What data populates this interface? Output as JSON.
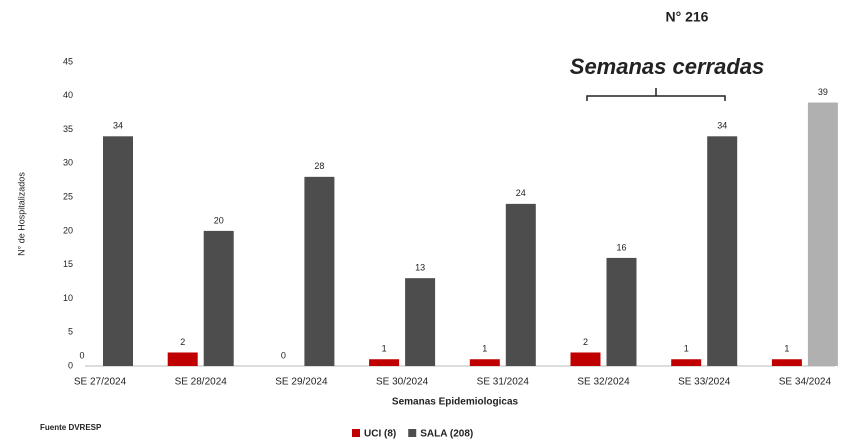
{
  "chart_data": {
    "type": "bar",
    "title": "N° 216",
    "annotation": "Semanas cerradas",
    "ylabel": "N° de Hospitalizados",
    "xlabel": "Semanas Epidemiologicas",
    "source": "Fuente DVRESP",
    "categories": [
      "SE 27/2024",
      "SE 28/2024",
      "SE 29/2024",
      "SE 30/2024",
      "SE 31/2024",
      "SE 32/2024",
      "SE 33/2024",
      "SE 34/2024"
    ],
    "series": [
      {
        "name": "UCI (8)",
        "color": "#c00000",
        "values": [
          0,
          2,
          0,
          1,
          1,
          2,
          1,
          1
        ]
      },
      {
        "name": "SALA (208)",
        "color": "#4d4d4d",
        "colors": [
          "#4d4d4d",
          "#4d4d4d",
          "#4d4d4d",
          "#4d4d4d",
          "#4d4d4d",
          "#4d4d4d",
          "#4d4d4d",
          "#b0b0b0"
        ],
        "values": [
          34,
          20,
          28,
          13,
          24,
          16,
          34,
          39
        ]
      }
    ],
    "ylim": [
      0,
      45
    ],
    "yticks": [
      0,
      5,
      10,
      15,
      20,
      25,
      30,
      35,
      40,
      45
    ],
    "grid": false,
    "legend": "bottom"
  }
}
